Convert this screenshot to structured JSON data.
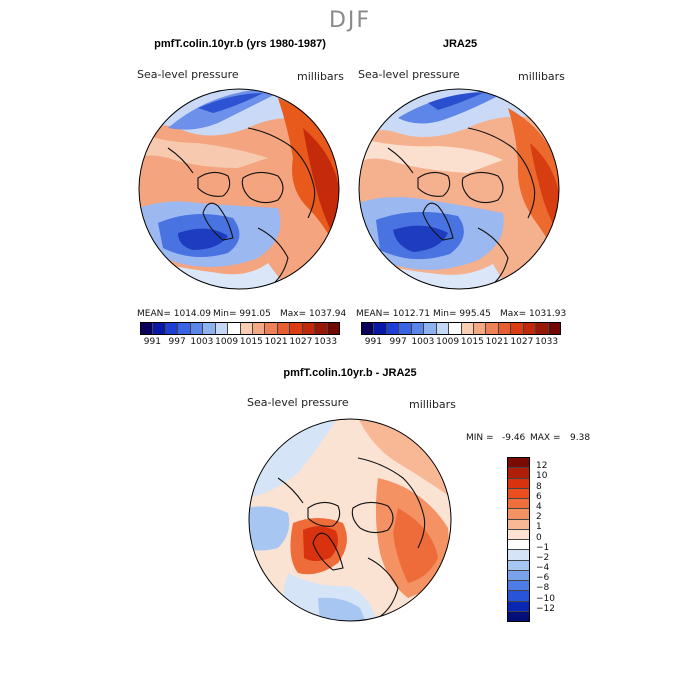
{
  "season_title": "DJF",
  "panel_left": {
    "title": "pmfT.colin.10yr.b (yrs 1980-1987)",
    "variable": "Sea-level pressure",
    "units": "millibars",
    "mean": "MEAN= 1014.09",
    "min": "Min= 991.05",
    "max": "Max= 1037.94"
  },
  "panel_right": {
    "title": "JRA25",
    "variable": "Sea-level pressure",
    "units": "millibars",
    "mean": "MEAN= 1012.71",
    "min": "Min= 995.45",
    "max": "Max= 1031.93"
  },
  "panel_diff": {
    "title": "pmfT.colin.10yr.b - JRA25",
    "variable": "Sea-level pressure",
    "units": "millibars",
    "min_label": "MIN =",
    "min_value": "-9.46",
    "max_label": "MAX =",
    "max_value": "9.38"
  },
  "colorbar_abs": {
    "ticks": [
      "991",
      "997",
      "1003",
      "1009",
      "1015",
      "1021",
      "1027",
      "1033"
    ],
    "colors": [
      "#08005a",
      "#0a18a8",
      "#1f3ed6",
      "#3a64e6",
      "#5a86ea",
      "#8eb1f0",
      "#c4d8f6",
      "#ffffff",
      "#f8cdb2",
      "#f4a884",
      "#f08058",
      "#e85e30",
      "#dc3c12",
      "#c2280a",
      "#981806",
      "#700804"
    ]
  },
  "colorbar_diff": {
    "ticks": [
      "12",
      "10",
      "8",
      "6",
      "4",
      "2",
      "1",
      "0",
      "−1",
      "−2",
      "−4",
      "−6",
      "−8",
      "−10",
      "−12"
    ],
    "colors": [
      "#7a0a04",
      "#b01e08",
      "#d8320e",
      "#ea4d1e",
      "#f06d3c",
      "#f49264",
      "#f8b896",
      "#fde3d4",
      "#ffffff",
      "#d6e4f8",
      "#a8c6f2",
      "#7aa2ec",
      "#4e7ce6",
      "#2754d8",
      "#0a26b4",
      "#040e78"
    ]
  }
}
